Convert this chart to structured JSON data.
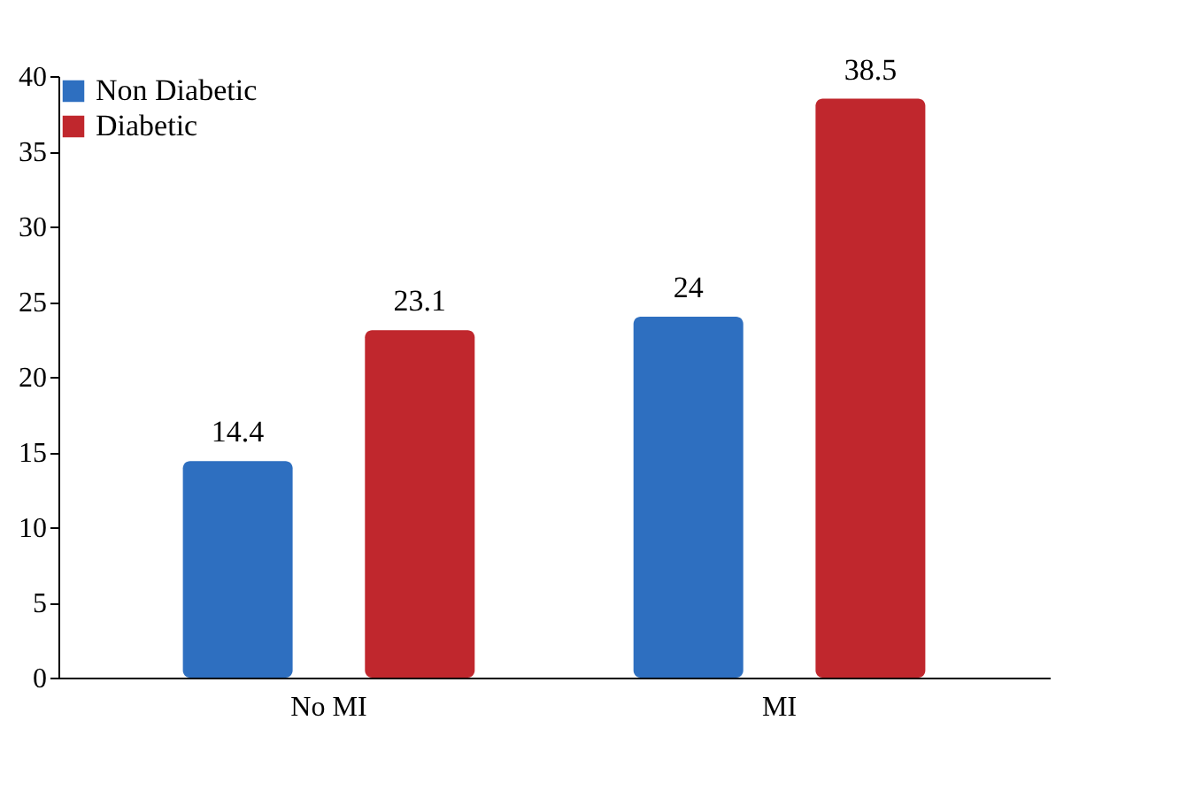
{
  "chart_data": {
    "type": "bar",
    "categories": [
      "No MI",
      "MI"
    ],
    "series": [
      {
        "name": "Non Diabetic",
        "color": "#2e6fc0",
        "values": [
          14.4,
          24
        ]
      },
      {
        "name": "Diabetic",
        "color": "#c0272d",
        "values": [
          23.1,
          38.5
        ]
      }
    ],
    "ylim": [
      0,
      40
    ],
    "yticks": [
      0,
      5,
      10,
      15,
      20,
      25,
      30,
      35,
      40
    ],
    "data_labels": true,
    "legend": "top left",
    "grid": false
  }
}
